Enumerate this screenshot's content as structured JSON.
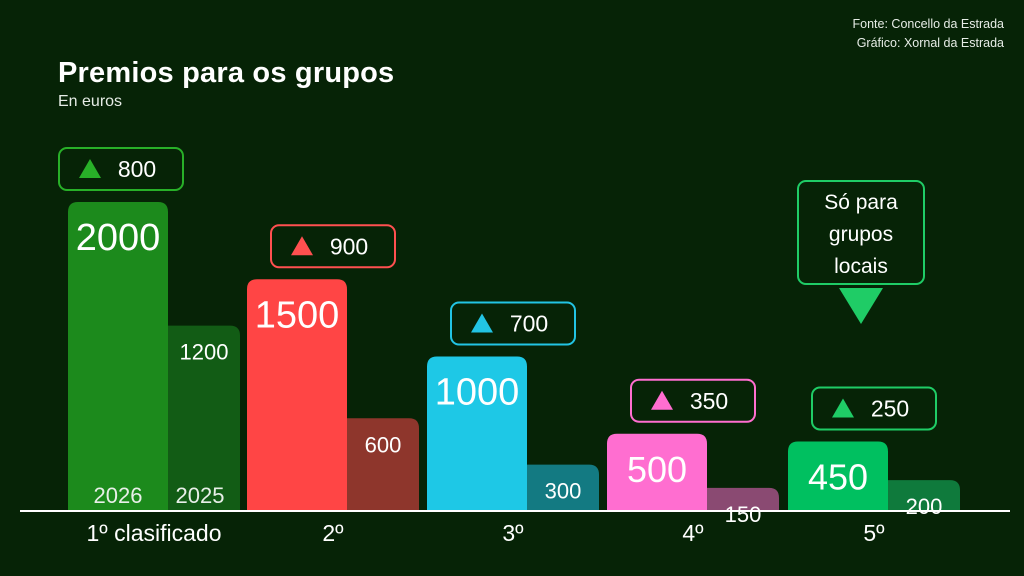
{
  "source": {
    "line1": "Fonte: Concello da Estrada",
    "line2": "Gráfico: Xornal da Estrada"
  },
  "chart_data": {
    "type": "bar",
    "title": "Premios para os grupos",
    "subtitle": "En euros",
    "categories": [
      "1º clasificado",
      "2º",
      "3º",
      "4º",
      "5º"
    ],
    "series": [
      {
        "name": "2026",
        "values": [
          2000,
          1500,
          1000,
          500,
          450
        ]
      },
      {
        "name": "2025",
        "values": [
          1200,
          600,
          300,
          150,
          200
        ]
      }
    ],
    "increases": [
      800,
      900,
      700,
      350,
      250
    ],
    "ylim": [
      0,
      2200
    ],
    "grid": false,
    "colors": {
      "background": "#062306",
      "axis": "#ffffff",
      "s2026": [
        "#1c8a1c",
        "#ff4545",
        "#1ec8e6",
        "#ff6ed0",
        "#00c060"
      ],
      "s2025": [
        "#125c15",
        "#8e362c",
        "#137a82",
        "#8a4a72",
        "#0f7a3c"
      ],
      "badge": [
        "#28b028",
        "#ff5050",
        "#22c4e4",
        "#ff6ed0",
        "#1fcc66"
      ]
    },
    "annotation": {
      "lines": [
        "Só para",
        "grupos",
        "locais"
      ],
      "category_index": 4,
      "color": "#1fcc66"
    }
  }
}
